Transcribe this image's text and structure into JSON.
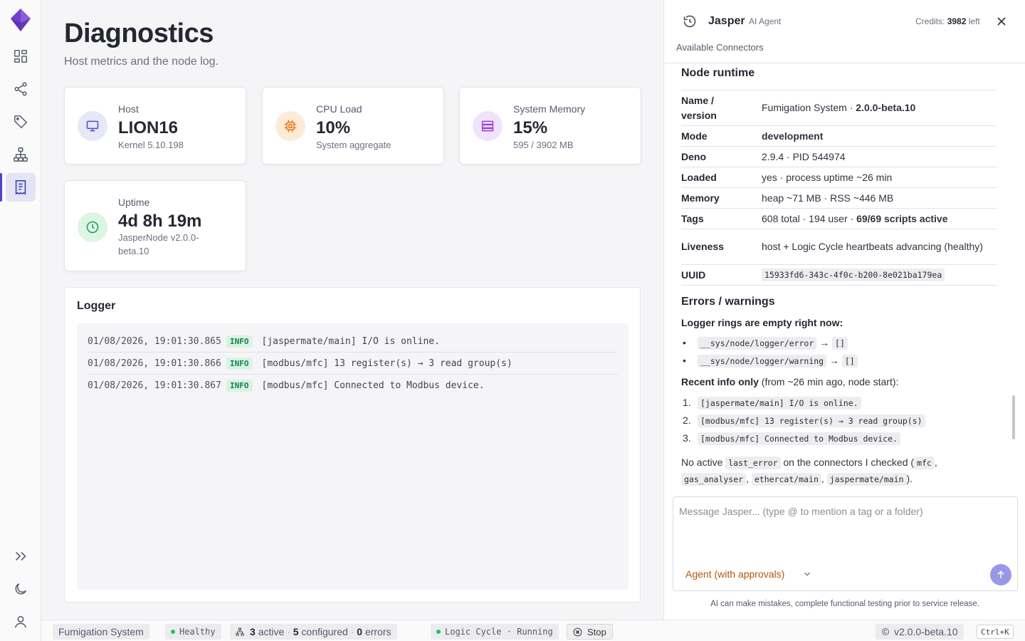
{
  "app": {
    "colors": {
      "accent": "#4a47c8",
      "brand": "#7c4dde",
      "success": "#16804b",
      "warning": "#b3560a"
    }
  },
  "rail": {
    "items": [
      {
        "name": "dashboard-icon"
      },
      {
        "name": "share-nodes-icon"
      },
      {
        "name": "tag-icon"
      },
      {
        "name": "network-tree-icon"
      },
      {
        "name": "receipt-log-icon",
        "active": true
      }
    ],
    "bottom": [
      "expand-icon",
      "moon-icon",
      "user-icon"
    ]
  },
  "page": {
    "title": "Diagnostics",
    "subtitle": "Host metrics and the node log."
  },
  "cards": {
    "host": {
      "label": "Host",
      "value": "LION16",
      "sub": "Kernel 5.10.198",
      "icon": "monitor-icon"
    },
    "cpu": {
      "label": "CPU Load",
      "value": "10%",
      "sub": "System aggregate",
      "icon": "cpu-icon"
    },
    "memory": {
      "label": "System Memory",
      "value": "15%",
      "sub": "595 / 3902 MB",
      "icon": "memory-icon"
    },
    "uptime": {
      "label": "Uptime",
      "value": "4d 8h 19m",
      "sub_line1": "JasperNode v2.0.0-",
      "sub_line2": "beta.10",
      "icon": "clock-icon"
    }
  },
  "logger": {
    "title": "Logger",
    "rows": [
      {
        "ts": "01/08/2026, 19:01:30.865",
        "level": "INFO",
        "msg": "[jaspermate/main] I/O is online."
      },
      {
        "ts": "01/08/2026, 19:01:30.866",
        "level": "INFO",
        "msg": "[modbus/mfc] 13 register(s) → 3 read group(s)"
      },
      {
        "ts": "01/08/2026, 19:01:30.867",
        "level": "INFO",
        "msg": "[modbus/mfc] Connected to Modbus device."
      }
    ]
  },
  "panel": {
    "agent_name": "Jasper",
    "agent_role": "AI Agent",
    "credits_label": "Credits:",
    "credits_value": "3982",
    "credits_suffix": "left",
    "connectors": "Available Connectors",
    "runtime_title": "Node runtime",
    "runtime": [
      {
        "k": "Name / version",
        "v_prefix": "Fumigation System · ",
        "v_bold": "2.0.0-beta.10"
      },
      {
        "k": "Mode",
        "v_bold": "development"
      },
      {
        "k": "Deno",
        "v": "2.9.4 · PID 544974"
      },
      {
        "k": "Loaded",
        "v": "yes · process uptime ~26 min"
      },
      {
        "k": "Memory",
        "v": "heap ~71 MB · RSS ~446 MB"
      },
      {
        "k": "Tags",
        "v_prefix": "608 total · 194 user · ",
        "v_bold": "69/69 scripts active"
      },
      {
        "k": "Liveness",
        "v": "host + Logic Cycle heartbeats advancing (healthy)"
      },
      {
        "k": "UUID",
        "v_code": "15933fd6-343c-4f0c-b200-8e021ba179ea"
      }
    ],
    "errors_title": "Errors / warnings",
    "empty_heading": "Logger rings are empty right now:",
    "empty_items": [
      {
        "path": "__sys/node/logger/error",
        "arrow": "→",
        "val": "[]"
      },
      {
        "path": "__sys/node/logger/warning",
        "arrow": "→",
        "val": "[]"
      }
    ],
    "recent_bold": "Recent info only",
    "recent_rest": " (from ~26 min ago, node start):",
    "recent_items": [
      "[jaspermate/main] I/O is online.",
      "[modbus/mfc] 13 register(s) → 3 read group(s)",
      "[modbus/mfc] Connected to Modbus device."
    ],
    "no_active_1": "No active ",
    "no_active_code": "last_error",
    "no_active_2": " on the connectors I checked (",
    "connectors_checked": [
      "mfc",
      "gas_analyser",
      "ethercat/main",
      "jaspermate/main"
    ],
    "no_active_end": ").",
    "composer_placeholder": "Message Jasper... (type @ to mention a tag or a folder)",
    "mode_label": "Agent (with approvals)",
    "disclaimer": "AI can make mistakes, complete functional testing prior to service release."
  },
  "statusbar": {
    "project": "Fumigation System",
    "health": "Healthy",
    "active_n": "3",
    "active_label": "active",
    "configured_n": "5",
    "configured_label": "configured",
    "errors_n": "0",
    "errors_label": "errors",
    "logic_cycle": "Logic Cycle · Running",
    "stop": "Stop",
    "version": "v2.0.0-beta.10",
    "shortcut": "Ctrl+K",
    "sep": "·"
  }
}
